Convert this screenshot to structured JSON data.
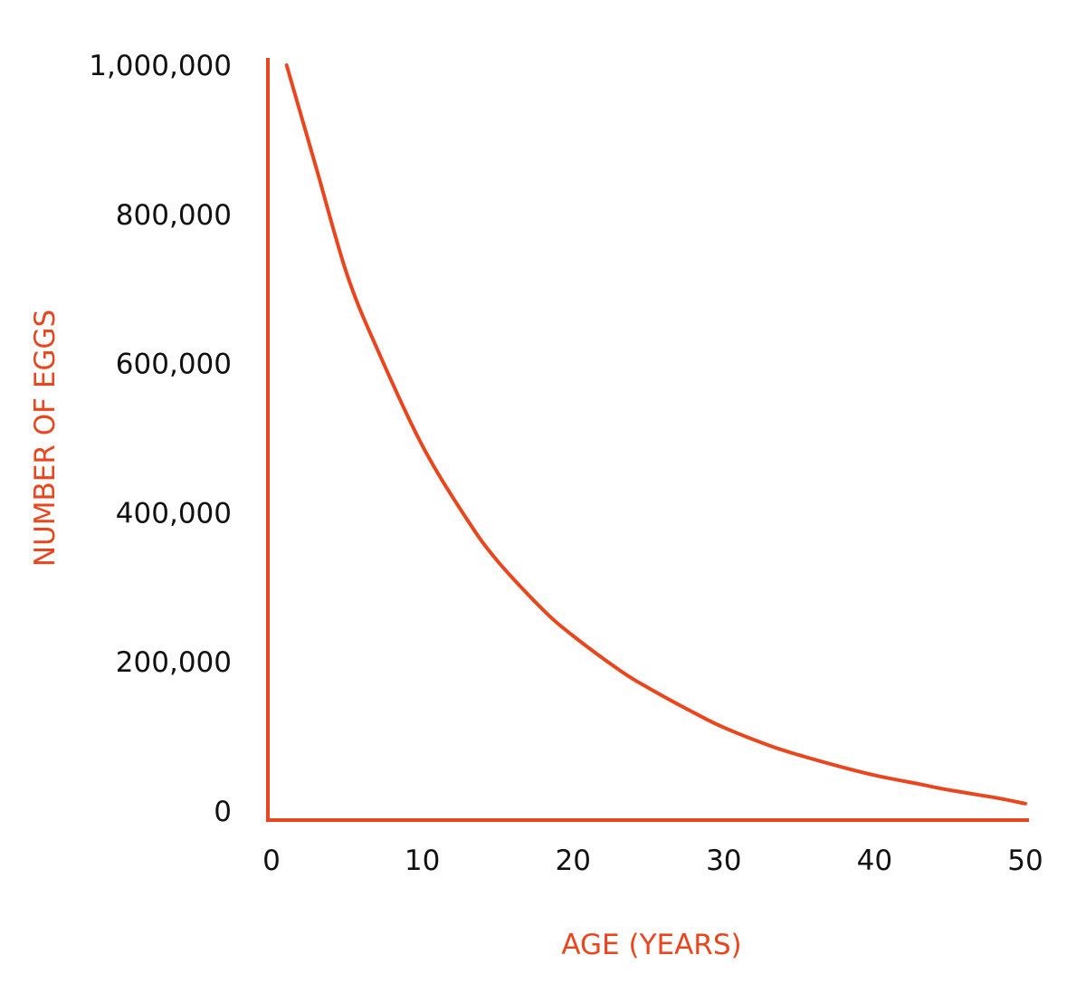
{
  "chart_data": {
    "type": "line",
    "title": "",
    "xlabel": "AGE (YEARS)",
    "ylabel": "NUMBER OF EGGS",
    "xlim": [
      0,
      50
    ],
    "ylim": [
      0,
      1000000
    ],
    "x_ticks": [
      0,
      10,
      20,
      30,
      40,
      50
    ],
    "x_tick_labels": [
      "0",
      "10",
      "20",
      "30",
      "40",
      "50"
    ],
    "y_ticks": [
      0,
      200000,
      400000,
      600000,
      800000,
      1000000
    ],
    "y_tick_labels": [
      "0",
      "200,000",
      "400,000",
      "600,000",
      "800,000",
      "1,000,000"
    ],
    "grid": false,
    "legend": "none",
    "colors": {
      "accent": "#E8461E",
      "text": "#111111"
    },
    "series": [
      {
        "x": [
          1,
          3,
          5,
          7,
          10,
          13,
          15,
          18,
          20,
          23,
          25,
          28,
          30,
          33,
          35,
          38,
          40,
          43,
          45,
          48,
          50
        ],
        "values": [
          1000000,
          860000,
          720000,
          620000,
          490000,
          390000,
          335000,
          270000,
          235000,
          190000,
          165000,
          132000,
          112000,
          88000,
          75000,
          58000,
          48000,
          36000,
          28000,
          18000,
          10000
        ]
      }
    ]
  }
}
